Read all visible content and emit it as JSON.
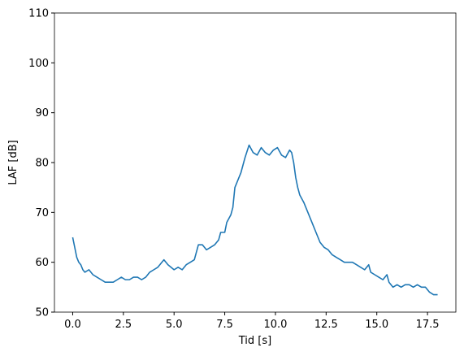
{
  "chart_data": {
    "type": "line",
    "xlabel": "Tid [s]",
    "ylabel": "LAF [dB]",
    "x": [
      0,
      0.1,
      0.2,
      0.3,
      0.4,
      0.5,
      0.6,
      0.8,
      1.0,
      1.2,
      1.4,
      1.6,
      1.8,
      2.0,
      2.2,
      2.4,
      2.6,
      2.8,
      3.0,
      3.2,
      3.4,
      3.6,
      3.8,
      4.0,
      4.2,
      4.4,
      4.5,
      4.7,
      5.0,
      5.2,
      5.4,
      5.6,
      5.8,
      6.0,
      6.2,
      6.4,
      6.6,
      6.8,
      7.0,
      7.2,
      7.3,
      7.5,
      7.6,
      7.8,
      7.9,
      8.0,
      8.1,
      8.3,
      8.5,
      8.7,
      8.9,
      9.1,
      9.3,
      9.5,
      9.7,
      9.9,
      10.1,
      10.3,
      10.5,
      10.7,
      10.8,
      10.9,
      11.0,
      11.1,
      11.2,
      11.4,
      11.6,
      11.8,
      12.0,
      12.2,
      12.4,
      12.6,
      12.8,
      13.0,
      13.2,
      13.4,
      13.6,
      13.8,
      14.0,
      14.2,
      14.4,
      14.6,
      14.7,
      14.9,
      15.1,
      15.3,
      15.5,
      15.6,
      15.8,
      16.0,
      16.2,
      16.4,
      16.6,
      16.8,
      17.0,
      17.2,
      17.4,
      17.6,
      17.8,
      18.0
    ],
    "series": [
      {
        "name": "LAF",
        "color": "#1f77b4",
        "values": [
          65,
          63,
          61,
          60,
          59.5,
          58.5,
          58,
          58.5,
          57.5,
          57,
          56.5,
          56,
          56,
          56,
          56.5,
          57,
          56.5,
          56.5,
          57,
          57,
          56.5,
          57,
          58,
          58.5,
          59,
          60,
          60.5,
          59.5,
          58.5,
          59,
          58.5,
          59.5,
          60,
          60.5,
          63.5,
          63.5,
          62.5,
          63,
          63.5,
          64.5,
          66,
          66,
          68,
          69.5,
          71,
          75,
          76,
          78,
          81,
          83.5,
          82,
          81.5,
          83,
          82,
          81.5,
          82.5,
          83,
          81.5,
          81,
          82.5,
          82,
          80,
          77,
          75,
          73.5,
          72,
          70,
          68,
          66,
          64,
          63,
          62.5,
          61.5,
          61,
          60.5,
          60,
          60,
          60,
          59.5,
          59,
          58.5,
          59.5,
          58,
          57.5,
          57,
          56.5,
          57.5,
          56,
          55,
          55.5,
          55,
          55.5,
          55.5,
          55,
          55.5,
          55,
          55,
          54,
          53.5,
          53.5
        ]
      }
    ],
    "xlim": [
      -0.9,
      18.9
    ],
    "xticks": [
      {
        "value": 0,
        "label": "0.0"
      },
      {
        "value": 2.5,
        "label": "2.5"
      },
      {
        "value": 5,
        "label": "5.0"
      },
      {
        "value": 7.5,
        "label": "7.5"
      },
      {
        "value": 10,
        "label": "10.0"
      },
      {
        "value": 12.5,
        "label": "12.5"
      },
      {
        "value": 15,
        "label": "15.0"
      },
      {
        "value": 17.5,
        "label": "17.5"
      }
    ],
    "ylim": [
      50,
      110
    ],
    "yticks": [
      50,
      60,
      70,
      80,
      90,
      100,
      110
    ],
    "grid": false
  }
}
